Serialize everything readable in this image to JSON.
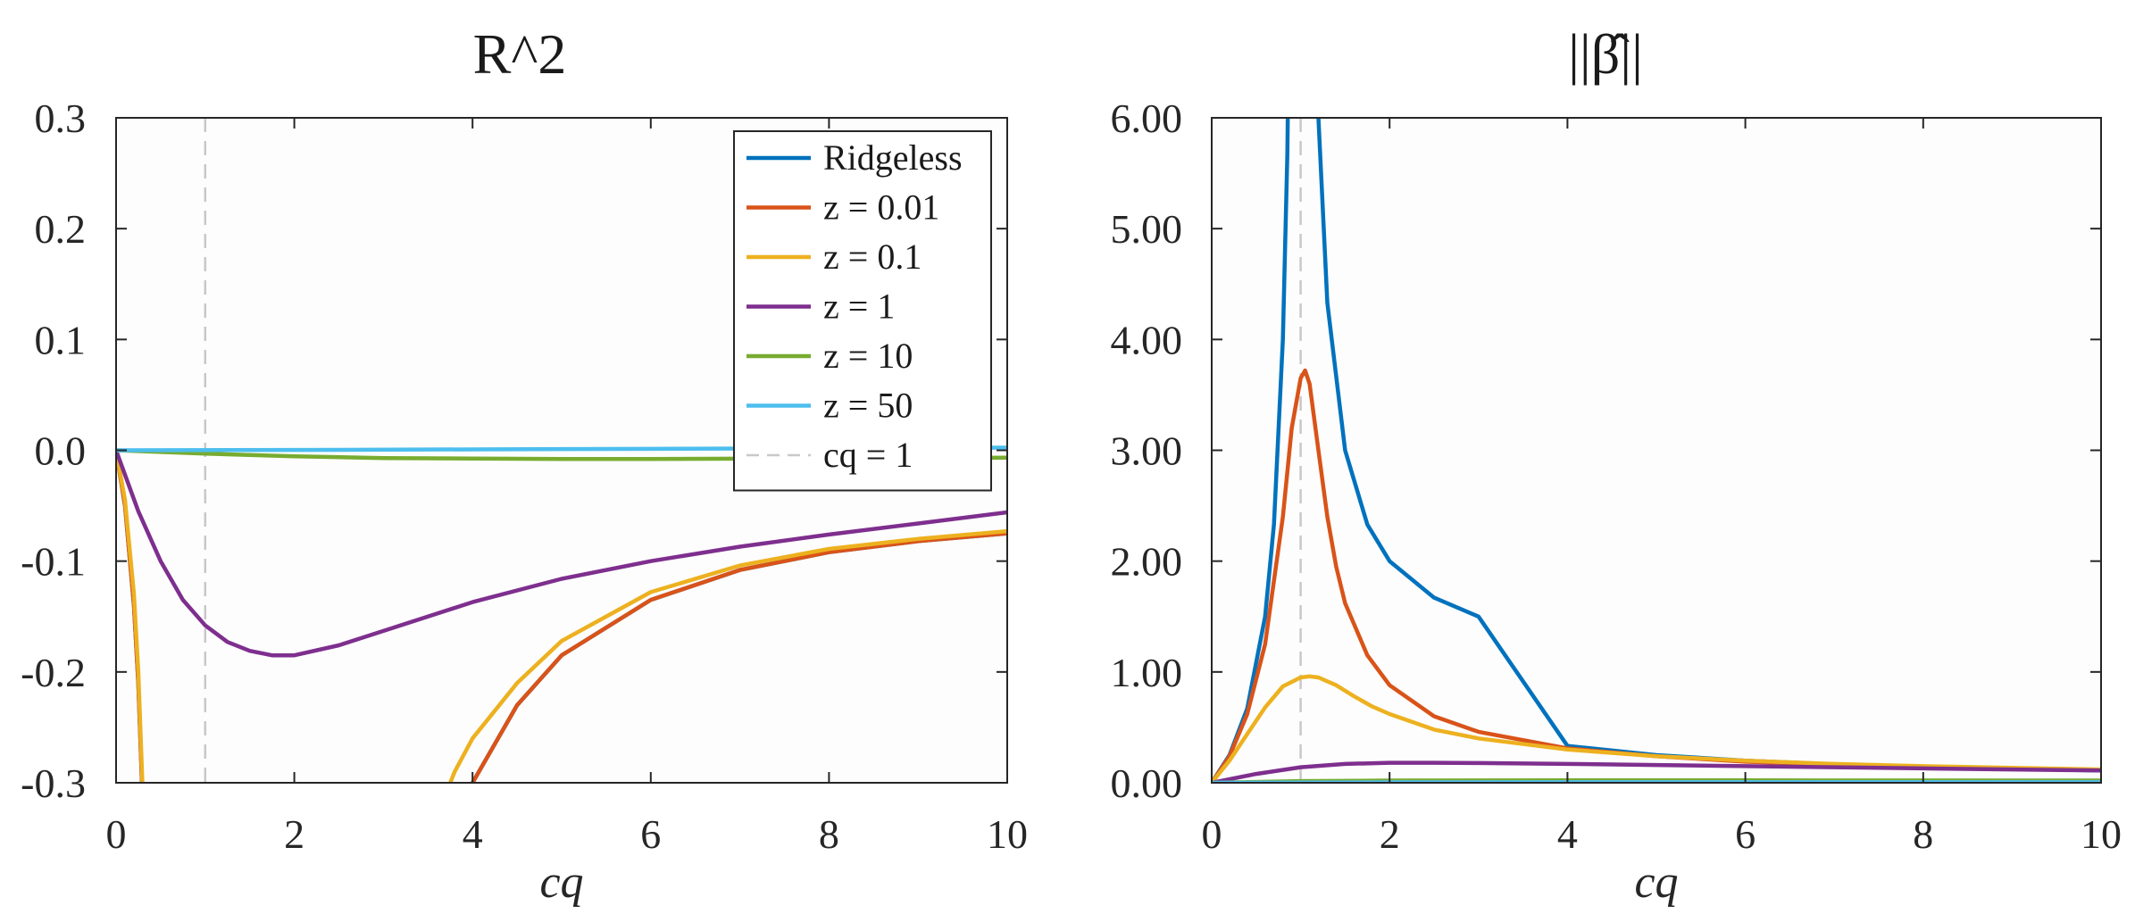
{
  "chart_data": [
    {
      "type": "line",
      "title": "R^2",
      "xlabel": "cq",
      "ylabel": "",
      "xlim": [
        0,
        10
      ],
      "ylim": [
        -0.3,
        0.3
      ],
      "xticks": [
        "0",
        "2",
        "4",
        "6",
        "8",
        "10"
      ],
      "yticks": [
        "0.3",
        "0.2",
        "0.1",
        "0.0",
        "-0.1",
        "-0.2",
        "-0.3"
      ],
      "legend_position": "top-right",
      "reference_line": {
        "name": "cq = 1",
        "x": 1,
        "style": "dashed",
        "color": "#c8c8c8"
      },
      "series": [
        {
          "name": "Ridgeless",
          "color": "#0072BD",
          "x": [
            0,
            0.1,
            0.2,
            0.25,
            0.3,
            3.95,
            4.0,
            4.5,
            5,
            6,
            7,
            8,
            9,
            10
          ],
          "y": [
            0,
            -0.05,
            -0.14,
            -0.21,
            -0.32,
            -0.32,
            -0.3,
            -0.23,
            -0.185,
            -0.135,
            -0.108,
            -0.092,
            -0.082,
            -0.075
          ]
        },
        {
          "name": "z = 0.01",
          "color": "#D95319",
          "x": [
            0,
            0.1,
            0.2,
            0.25,
            0.3,
            3.95,
            4.0,
            4.5,
            5,
            6,
            7,
            8,
            9,
            10
          ],
          "y": [
            0,
            -0.05,
            -0.14,
            -0.21,
            -0.32,
            -0.32,
            -0.3,
            -0.23,
            -0.185,
            -0.135,
            -0.108,
            -0.092,
            -0.082,
            -0.075
          ]
        },
        {
          "name": "z = 0.1",
          "color": "#EDB120",
          "x": [
            0,
            0.1,
            0.2,
            0.25,
            0.3,
            3.7,
            3.8,
            4,
            4.5,
            5,
            6,
            7,
            8,
            9,
            10
          ],
          "y": [
            0,
            -0.045,
            -0.13,
            -0.2,
            -0.31,
            -0.31,
            -0.29,
            -0.26,
            -0.21,
            -0.172,
            -0.128,
            -0.104,
            -0.089,
            -0.08,
            -0.073
          ]
        },
        {
          "name": "z = 1",
          "color": "#7E2F8E",
          "x": [
            0,
            0.25,
            0.5,
            0.75,
            1,
            1.25,
            1.5,
            1.75,
            2,
            2.5,
            3,
            4,
            5,
            6,
            7,
            8,
            9,
            10
          ],
          "y": [
            0,
            -0.055,
            -0.1,
            -0.135,
            -0.158,
            -0.173,
            -0.181,
            -0.185,
            -0.185,
            -0.176,
            -0.163,
            -0.137,
            -0.116,
            -0.1,
            -0.087,
            -0.076,
            -0.066,
            -0.056
          ]
        },
        {
          "name": "z = 10",
          "color": "#77AC30",
          "x": [
            0,
            1,
            2,
            3,
            4,
            5,
            6,
            7,
            8,
            9,
            10
          ],
          "y": [
            0,
            -0.003,
            -0.0055,
            -0.007,
            -0.0075,
            -0.0078,
            -0.0078,
            -0.0076,
            -0.0073,
            -0.007,
            -0.0066
          ]
        },
        {
          "name": "z = 50",
          "color": "#4DBEEE",
          "x": [
            0,
            2,
            4,
            6,
            8,
            10
          ],
          "y": [
            0,
            0.0003,
            0.0008,
            0.0013,
            0.0018,
            0.0024
          ]
        }
      ]
    },
    {
      "type": "line",
      "title": "||β̂||",
      "xlabel": "cq",
      "ylabel": "",
      "xlim": [
        0,
        10
      ],
      "ylim": [
        0,
        6
      ],
      "xticks": [
        "0",
        "2",
        "4",
        "6",
        "8",
        "10"
      ],
      "yticks": [
        "6.00",
        "5.00",
        "4.00",
        "3.00",
        "2.00",
        "1.00",
        "0.00"
      ],
      "reference_line": {
        "name": "cq = 1",
        "x": 1,
        "style": "dashed",
        "color": "#c8c8c8"
      },
      "series": [
        {
          "name": "Ridgeless",
          "color": "#0072BD",
          "x": [
            0,
            0.2,
            0.4,
            0.6,
            0.7,
            0.8,
            0.85,
            0.9,
            1.1,
            1.2,
            1.3,
            1.5,
            1.75,
            2,
            2.5,
            3,
            4,
            5,
            6,
            7,
            8,
            9,
            10
          ],
          "y": [
            0,
            0.25,
            0.67,
            1.5,
            2.33,
            4.0,
            5.67,
            9.0,
            11.0,
            6.0,
            4.33,
            3.0,
            2.33,
            2.0,
            1.67,
            1.5,
            0.333,
            0.25,
            0.2,
            0.167,
            0.143,
            0.125,
            0.111
          ]
        },
        {
          "name": "z = 0.01",
          "color": "#D95319",
          "x": [
            0,
            0.2,
            0.4,
            0.6,
            0.8,
            0.9,
            1.0,
            1.05,
            1.1,
            1.2,
            1.3,
            1.4,
            1.5,
            1.75,
            2,
            2.5,
            3,
            4,
            5,
            6,
            7,
            8,
            9,
            10
          ],
          "y": [
            0,
            0.24,
            0.62,
            1.25,
            2.4,
            3.2,
            3.65,
            3.72,
            3.6,
            3.0,
            2.4,
            1.95,
            1.62,
            1.15,
            0.88,
            0.6,
            0.46,
            0.31,
            0.24,
            0.19,
            0.165,
            0.145,
            0.13,
            0.115
          ]
        },
        {
          "name": "z = 0.1",
          "color": "#EDB120",
          "x": [
            0,
            0.2,
            0.4,
            0.6,
            0.8,
            1.0,
            1.1,
            1.2,
            1.4,
            1.6,
            1.8,
            2,
            2.5,
            3,
            4,
            5,
            6,
            7,
            8,
            9,
            10
          ],
          "y": [
            0,
            0.2,
            0.44,
            0.68,
            0.87,
            0.95,
            0.96,
            0.95,
            0.88,
            0.78,
            0.69,
            0.62,
            0.48,
            0.4,
            0.3,
            0.24,
            0.2,
            0.17,
            0.15,
            0.135,
            0.12
          ]
        },
        {
          "name": "z = 1",
          "color": "#7E2F8E",
          "x": [
            0,
            0.5,
            1,
            1.5,
            2,
            2.5,
            3,
            4,
            5,
            6,
            7,
            8,
            9,
            10
          ],
          "y": [
            0,
            0.08,
            0.14,
            0.17,
            0.18,
            0.18,
            0.178,
            0.17,
            0.16,
            0.15,
            0.14,
            0.13,
            0.12,
            0.11
          ]
        },
        {
          "name": "z = 10",
          "color": "#77AC30",
          "x": [
            0,
            1,
            2,
            4,
            6,
            8,
            10
          ],
          "y": [
            0,
            0.015,
            0.02,
            0.022,
            0.022,
            0.021,
            0.02
          ]
        },
        {
          "name": "z = 50",
          "color": "#4DBEEE",
          "x": [
            0,
            2,
            4,
            6,
            8,
            10
          ],
          "y": [
            0,
            0.004,
            0.005,
            0.005,
            0.005,
            0.005
          ]
        }
      ]
    }
  ],
  "legend": {
    "items": [
      {
        "label": "Ridgeless",
        "color": "#0072BD",
        "dash": false
      },
      {
        "label": "z = 0.01",
        "color": "#D95319",
        "dash": false
      },
      {
        "label": "z = 0.1",
        "color": "#EDB120",
        "dash": false
      },
      {
        "label": "z = 1",
        "color": "#7E2F8E",
        "dash": false
      },
      {
        "label": "z = 10",
        "color": "#77AC30",
        "dash": false
      },
      {
        "label": "z = 50",
        "color": "#4DBEEE",
        "dash": false
      },
      {
        "label": "cq = 1",
        "color": "#c8c8c8",
        "dash": true
      }
    ]
  }
}
